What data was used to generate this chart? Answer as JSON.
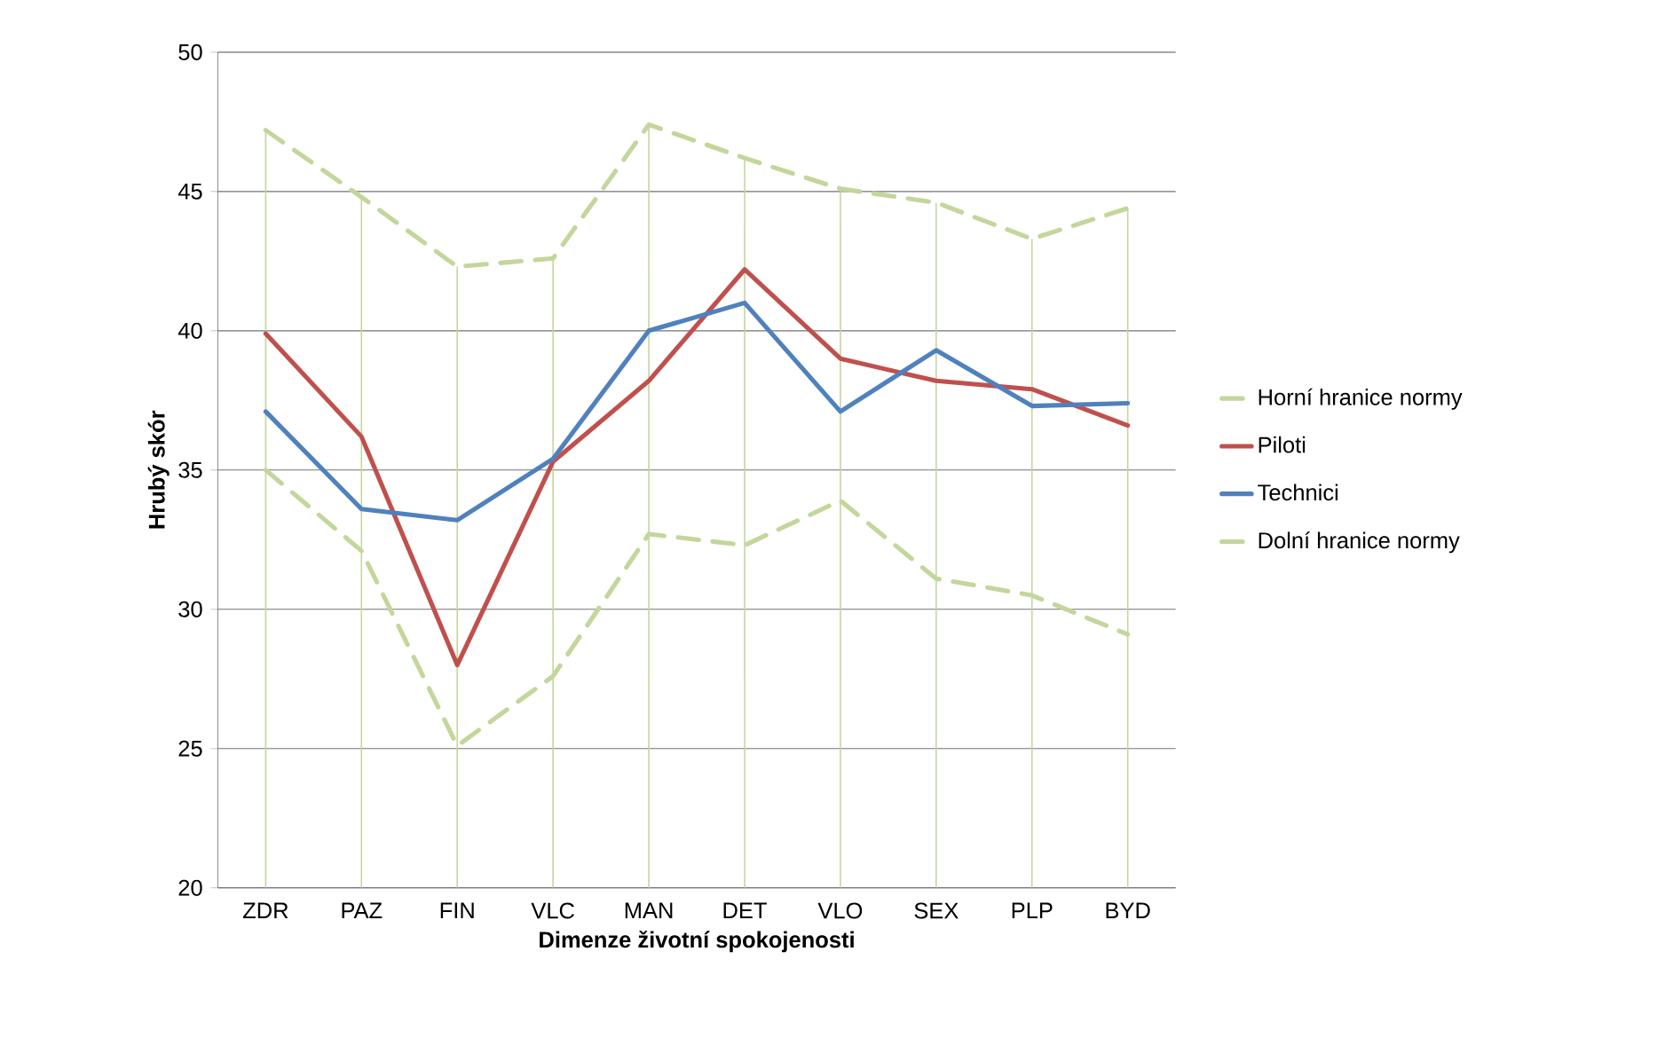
{
  "chart_data": {
    "type": "line",
    "xlabel": "Dimenze životní spokojenosti",
    "ylabel": "Hrubý skór",
    "categories": [
      "ZDR",
      "PAZ",
      "FIN",
      "VLC",
      "MAN",
      "DET",
      "VLO",
      "SEX",
      "PLP",
      "BYD"
    ],
    "ylim": [
      20,
      50
    ],
    "yticks": [
      20,
      25,
      30,
      35,
      40,
      45,
      50
    ],
    "grid": true,
    "legend": "right",
    "marker": "none",
    "series": [
      {
        "name": "Horní hranice normy",
        "color": "#c3d69b",
        "line_style": "dashed",
        "values": [
          47.2,
          44.8,
          42.3,
          42.6,
          47.4,
          46.2,
          45.1,
          44.6,
          43.3,
          44.4
        ]
      },
      {
        "name": "Piloti",
        "color": "#c0504d",
        "line_style": "solid",
        "values": [
          39.9,
          36.2,
          28.0,
          35.3,
          38.2,
          42.2,
          39.0,
          38.2,
          37.9,
          36.6
        ]
      },
      {
        "name": "Technici",
        "color": "#4f81bd",
        "line_style": "solid",
        "values": [
          37.1,
          33.6,
          33.2,
          35.4,
          40.0,
          41.0,
          37.1,
          39.3,
          37.3,
          37.4
        ]
      },
      {
        "name": "Dolní hranice normy",
        "color": "#c3d69b",
        "line_style": "dashed",
        "values": [
          35.0,
          32.1,
          25.1,
          27.6,
          32.7,
          32.3,
          33.9,
          31.1,
          30.5,
          29.1
        ]
      }
    ]
  }
}
